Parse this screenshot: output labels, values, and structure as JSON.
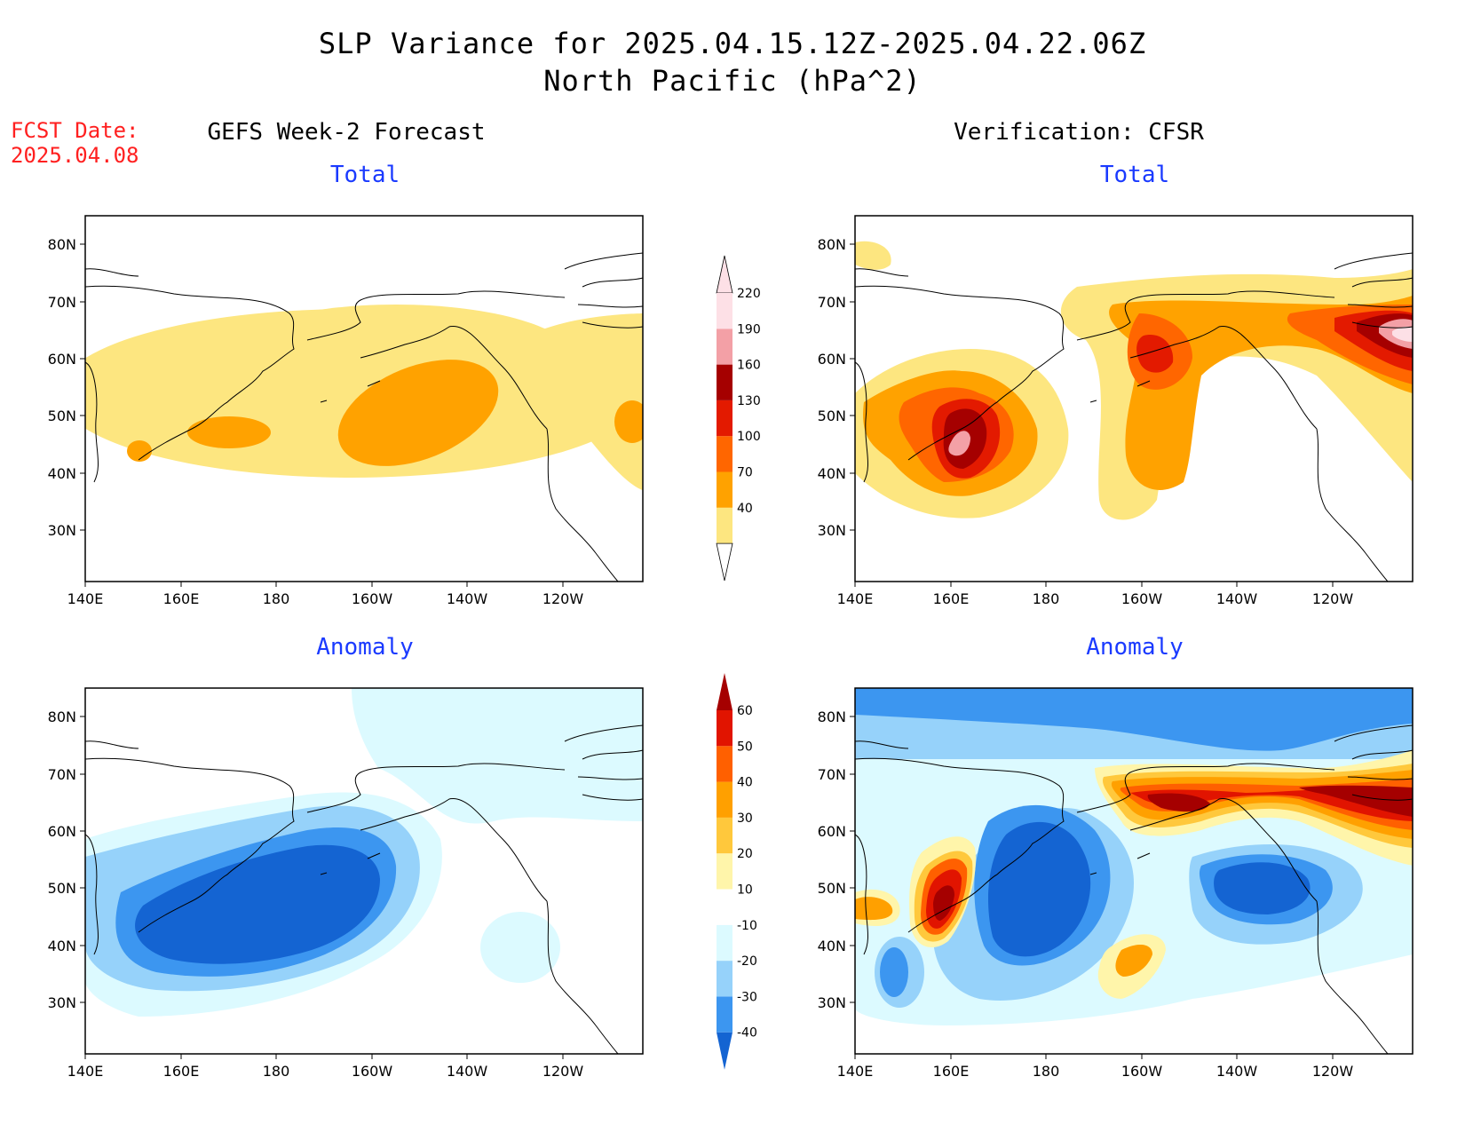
{
  "title_line1": "SLP Variance for 2025.04.15.12Z-2025.04.22.06Z",
  "title_line2": "North Pacific (hPa^2)",
  "fcst_label": "FCST Date:",
  "fcst_date": "2025.04.08",
  "left_heading": "GEFS Week-2 Forecast",
  "right_heading": "Verification: CFSR",
  "panels": {
    "tl": {
      "subtitle": "Total"
    },
    "tr": {
      "subtitle": "Total"
    },
    "bl": {
      "subtitle": "Anomaly"
    },
    "br": {
      "subtitle": "Anomaly"
    }
  },
  "lat_labels": [
    "80N",
    "70N",
    "60N",
    "50N",
    "40N",
    "30N"
  ],
  "lon_labels": [
    "140E",
    "160E",
    "180",
    "160W",
    "140W",
    "120W"
  ],
  "total_colorbar": {
    "labels": [
      "40",
      "70",
      "100",
      "130",
      "160",
      "190",
      "220"
    ],
    "colors": [
      "#fde680",
      "#ffa200",
      "#ff6600",
      "#e31a00",
      "#a50000",
      "#f3a0a6",
      "#fde0e6"
    ]
  },
  "anomaly_colorbar": {
    "labels": [
      "-40",
      "-30",
      "-20",
      "-10",
      "10",
      "20",
      "30",
      "40",
      "50",
      "60"
    ],
    "colors": [
      "#1464d2",
      "#3c96f0",
      "#96d2fa",
      "#dcfaff",
      "#ffffff",
      "#fff5aa",
      "#ffc83c",
      "#ffa000",
      "#ff6000",
      "#e11400",
      "#a50000"
    ]
  }
}
